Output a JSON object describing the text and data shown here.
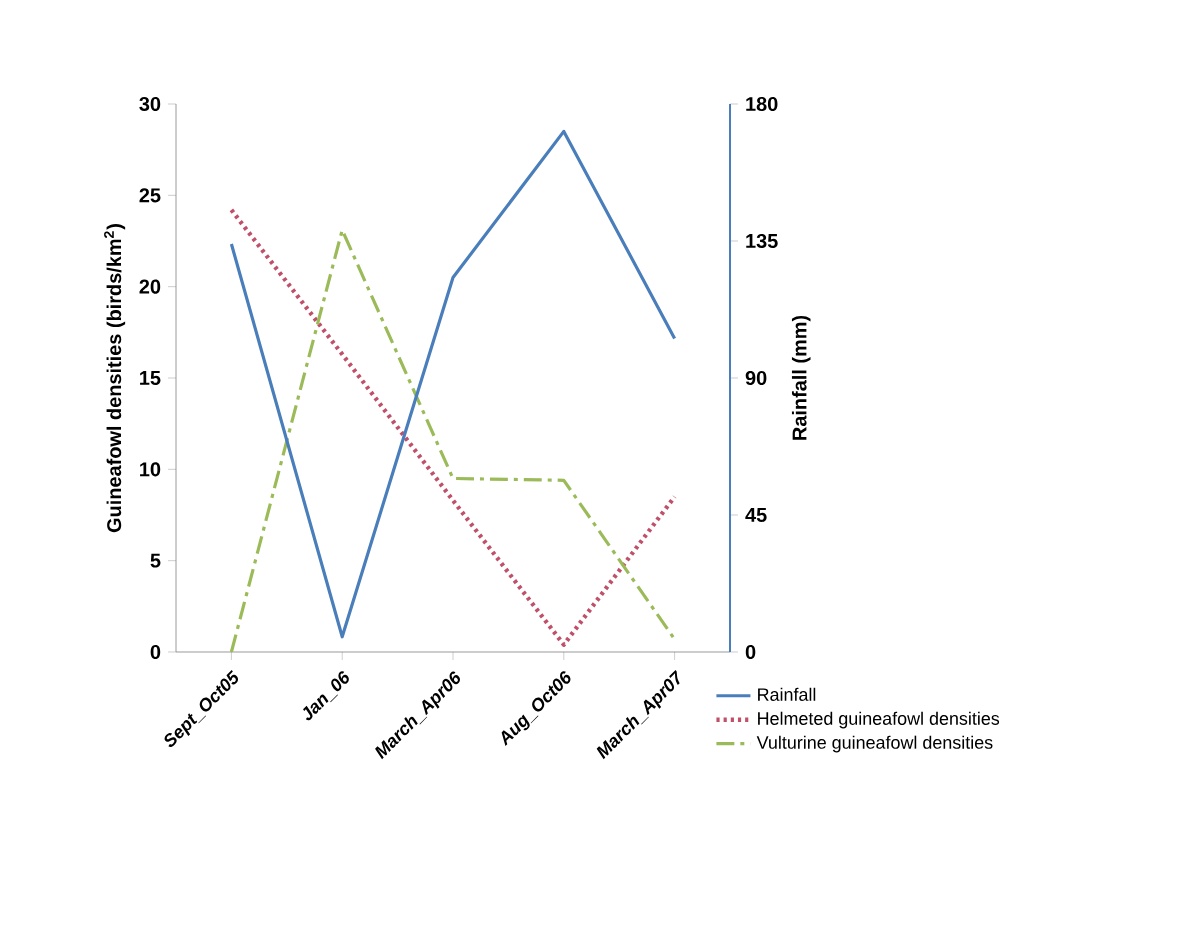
{
  "chart_data": {
    "type": "line",
    "categories": [
      "Sept_Oct05",
      "Jan_06",
      "March_Apr06",
      "Aug_Oct06",
      "March_Apr07"
    ],
    "ylabel": "Guineafowl densities (birds/km$^{2}$)",
    "y2label": "Rainfall (mm)",
    "ylim": [
      0,
      30
    ],
    "yticks": [
      0,
      5,
      10,
      15,
      20,
      25,
      30
    ],
    "y2lim": [
      0,
      180
    ],
    "y2ticks": [
      0,
      45,
      90,
      135,
      180
    ],
    "series": [
      {
        "name": "Rainfall",
        "color": "#4a7ebb",
        "axis": "y2",
        "line_style": "solid",
        "values": [
          134,
          5,
          123,
          171,
          103
        ]
      },
      {
        "name": "Helmeted guineafowl densities",
        "color": "#c0506a",
        "line_style": "dotted",
        "values": [
          24.2,
          16.3,
          8.3,
          0.4,
          8.5
        ]
      },
      {
        "name": "Vulturine guineafowl densities",
        "color": "#9bbb59",
        "line_style": "dashdot",
        "values": [
          0,
          23.1,
          9.5,
          9.4,
          0.7
        ]
      }
    ],
    "legend": "bottom right",
    "marker": "none",
    "grid": false
  }
}
